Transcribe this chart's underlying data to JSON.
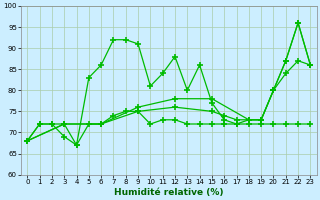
{
  "background_color": "#cceeff",
  "grid_color": "#aaccaa",
  "line_color": "#00bb00",
  "marker": "+",
  "xlabel": "Humidité relative (%)",
  "xlabel_color": "#006600",
  "ylim": [
    60,
    100
  ],
  "xlim": [
    -0.5,
    23.5
  ],
  "yticks": [
    60,
    65,
    70,
    75,
    80,
    85,
    90,
    95,
    100
  ],
  "xticks": [
    0,
    1,
    2,
    3,
    4,
    5,
    6,
    7,
    8,
    9,
    10,
    11,
    12,
    13,
    14,
    15,
    16,
    17,
    18,
    19,
    20,
    21,
    22,
    23
  ],
  "lines": [
    {
      "x": [
        0,
        1,
        2,
        3,
        4,
        5,
        6,
        7,
        8,
        9,
        10,
        11,
        12,
        13,
        14,
        15,
        16,
        17,
        18,
        19,
        20,
        21,
        22,
        23
      ],
      "y": [
        68,
        72,
        72,
        72,
        67,
        83,
        86,
        92,
        92,
        91,
        81,
        84,
        88,
        80,
        86,
        77,
        73,
        72,
        73,
        73,
        80,
        87,
        96,
        86
      ]
    },
    {
      "x": [
        0,
        1,
        2,
        3,
        4,
        5,
        6,
        7,
        8,
        9,
        10,
        11,
        12,
        13,
        14,
        15,
        16,
        17,
        18,
        19,
        20,
        21,
        22,
        23
      ],
      "y": [
        68,
        72,
        72,
        69,
        67,
        72,
        72,
        74,
        75,
        75,
        72,
        73,
        73,
        72,
        72,
        72,
        72,
        72,
        72,
        72,
        72,
        72,
        72,
        72
      ]
    },
    {
      "x": [
        0,
        3,
        6,
        9,
        12,
        15,
        18,
        19,
        20,
        21,
        22,
        23
      ],
      "y": [
        68,
        72,
        72,
        76,
        78,
        78,
        73,
        73,
        80,
        87,
        96,
        86
      ]
    },
    {
      "x": [
        0,
        3,
        6,
        9,
        12,
        15,
        16,
        17,
        18,
        19,
        20,
        21,
        22,
        23
      ],
      "y": [
        68,
        72,
        72,
        75,
        76,
        75,
        74,
        73,
        73,
        73,
        80,
        84,
        87,
        86
      ]
    }
  ]
}
